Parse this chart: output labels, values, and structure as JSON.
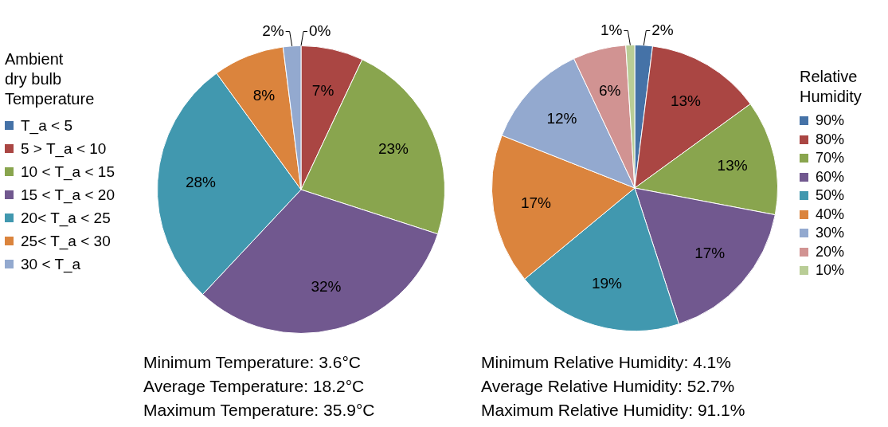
{
  "chart_data": [
    {
      "type": "pie",
      "legend_title": "Ambient\ndry bulb\nTemperature",
      "legend": "left",
      "categories": [
        "T_a < 5",
        "5 > T_a < 10",
        "10 < T_a < 15",
        "15 < T_a < 20",
        "20< T_a < 25",
        "25< T_a < 30",
        "30 < T_a"
      ],
      "values": [
        0,
        7,
        23,
        32,
        28,
        8,
        2
      ],
      "value_labels": [
        "0%",
        "7%",
        "23%",
        "32%",
        "28%",
        "8%",
        "2%"
      ],
      "colors": [
        "#4572a7",
        "#aa4643",
        "#89a54e",
        "#71588f",
        "#4198af",
        "#db843d",
        "#93a9cf"
      ],
      "annotations": [
        "Minimum Temperature: 3.6°C",
        "Average Temperature: 18.2°C",
        "Maximum Temperature: 35.9°C"
      ]
    },
    {
      "type": "pie",
      "legend_title": "Relative\nHumidity",
      "legend": "right",
      "categories": [
        "90%",
        "80%",
        "70%",
        "60%",
        "50%",
        "40%",
        "30%",
        "20%",
        "10%"
      ],
      "values": [
        2,
        13,
        13,
        17,
        19,
        17,
        12,
        6,
        1
      ],
      "value_labels": [
        "2%",
        "13%",
        "13%",
        "17%",
        "19%",
        "17%",
        "12%",
        "6%",
        "1%"
      ],
      "colors": [
        "#4572a7",
        "#aa4643",
        "#89a54e",
        "#71588f",
        "#4198af",
        "#db843d",
        "#93a9cf",
        "#d19392",
        "#b9cd96"
      ],
      "annotations": [
        "Minimum Relative Humidity: 4.1%",
        "Average Relative Humidity: 52.7%",
        "Maximum Relative Humidity: 91.1%"
      ]
    }
  ]
}
